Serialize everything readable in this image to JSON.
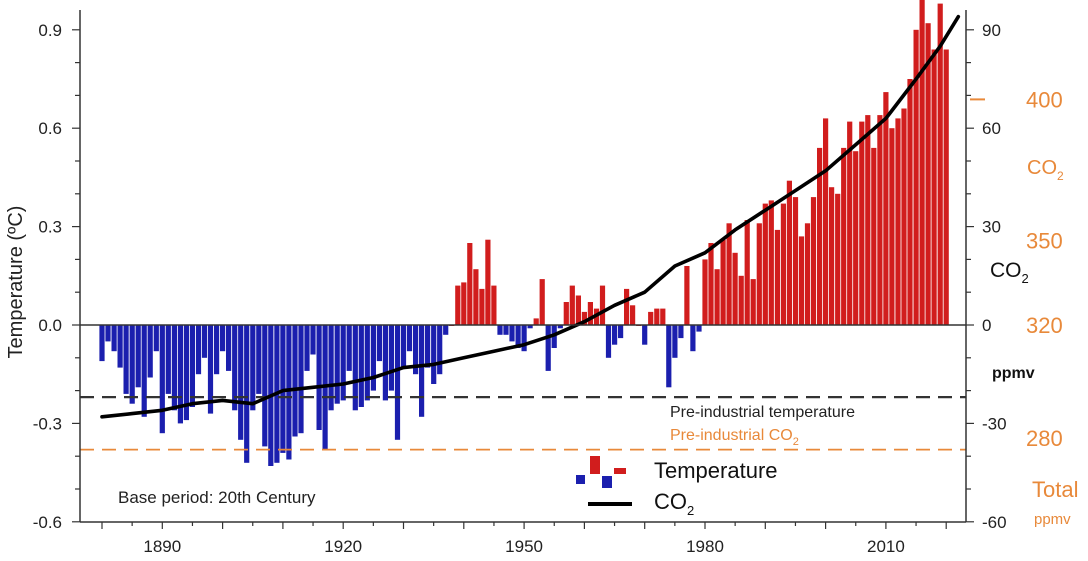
{
  "chart_data": {
    "type": "bar",
    "title": "",
    "xlabel": "",
    "ylabel": "Temperature (ºC)",
    "xlim": [
      1876,
      2024
    ],
    "ylim": [
      -0.6,
      0.9
    ],
    "x_ticks": [
      1890,
      1920,
      1950,
      1980,
      2010
    ],
    "y_ticks_left": [
      {
        "v": 0.9,
        "label": "0.9"
      },
      {
        "v": 0.6,
        "label": "0.6"
      },
      {
        "v": 0.3,
        "label": "0.3"
      },
      {
        "v": 0.0,
        "label": "0.0"
      },
      {
        "v": -0.3,
        "label": "-0.3"
      },
      {
        "v": -0.6,
        "label": "-0.6"
      }
    ],
    "y2_label": "CO2",
    "y2_unit": "ppmv",
    "y2_scale": "anomaly ppmv relative to 320 ppmv; -60 maps to -0.6 ºC, 90 maps to 0.9 ºC",
    "y2_ticks": [
      {
        "v": 90,
        "label": "90"
      },
      {
        "v": 60,
        "label": "60"
      },
      {
        "v": 30,
        "label": "30"
      },
      {
        "v": 0,
        "label": "0"
      },
      {
        "v": -30,
        "label": "-30"
      },
      {
        "v": -60,
        "label": "-60"
      }
    ],
    "y3_label": "CO",
    "y3_sub": "2",
    "y3_total_label": "Total",
    "y3_unit": "ppmv",
    "y3_ticks": [
      {
        "v": 400,
        "label": "400"
      },
      {
        "v": 350,
        "label": "350"
      },
      {
        "v": 320,
        "label": "320"
      },
      {
        "v": 280,
        "label": "280"
      }
    ],
    "reference_lines": [
      {
        "name": "pre-industrial-temperature",
        "y": -0.22,
        "label": "Pre-industrial temperature",
        "color": "#333333"
      },
      {
        "name": "pre-industrial-co2",
        "y": -0.38,
        "label_main": "Pre-industrial CO",
        "label_sub": "2",
        "color": "#e8893a"
      }
    ],
    "annotation": "Base period: 20th Century",
    "legend": [
      {
        "label": "Temperature",
        "type": "bars"
      },
      {
        "label_main": "CO",
        "label_sub": "2",
        "type": "line"
      }
    ],
    "legend_position": "bottom-center",
    "colors": {
      "positive": "#d11d1d",
      "negative": "#1b1fae",
      "co2": "#000000",
      "secondary_axis": "#e8893a",
      "grid": "#333333"
    },
    "series": [
      {
        "name": "Temperature",
        "x_start": 1880,
        "values": [
          -0.11,
          -0.05,
          -0.08,
          -0.13,
          -0.21,
          -0.24,
          -0.19,
          -0.28,
          -0.16,
          -0.08,
          -0.33,
          -0.21,
          -0.26,
          -0.3,
          -0.29,
          -0.25,
          -0.15,
          -0.1,
          -0.27,
          -0.15,
          -0.08,
          -0.14,
          -0.26,
          -0.35,
          -0.42,
          -0.26,
          -0.21,
          -0.37,
          -0.43,
          -0.42,
          -0.39,
          -0.41,
          -0.34,
          -0.33,
          -0.14,
          -0.09,
          -0.32,
          -0.38,
          -0.26,
          -0.24,
          -0.23,
          -0.14,
          -0.26,
          -0.25,
          -0.23,
          -0.2,
          -0.11,
          -0.23,
          -0.2,
          -0.35,
          -0.13,
          -0.08,
          -0.15,
          -0.28,
          -0.13,
          -0.18,
          -0.15,
          -0.03,
          -0.0,
          0.12,
          0.13,
          0.25,
          0.17,
          0.11,
          0.26,
          0.12,
          -0.03,
          -0.03,
          -0.05,
          -0.07,
          -0.08,
          -0.01,
          0.02,
          0.14,
          -0.14,
          -0.07,
          -0.01,
          0.07,
          0.12,
          0.09,
          0.04,
          0.07,
          0.05,
          0.12,
          -0.1,
          -0.06,
          -0.04,
          0.11,
          0.06,
          0.0,
          -0.06,
          0.04,
          0.05,
          0.05,
          -0.19,
          -0.1,
          -0.04,
          0.18,
          -0.08,
          -0.02,
          0.2,
          0.25,
          0.17,
          0.26,
          0.31,
          0.22,
          0.15,
          0.32,
          0.14,
          0.31,
          0.37,
          0.38,
          0.29,
          0.37,
          0.44,
          0.39,
          0.27,
          0.31,
          0.39,
          0.54,
          0.63,
          0.42,
          0.4,
          0.54,
          0.62,
          0.53,
          0.62,
          0.64,
          0.54,
          0.64,
          0.71,
          0.6,
          0.63,
          0.66,
          0.75,
          0.9,
          1.0,
          0.92,
          0.84,
          0.98,
          0.84
        ]
      },
      {
        "name": "CO2",
        "x": [
          1880,
          1885,
          1890,
          1895,
          1900,
          1905,
          1910,
          1915,
          1920,
          1925,
          1930,
          1935,
          1940,
          1945,
          1950,
          1955,
          1960,
          1965,
          1970,
          1975,
          1980,
          1985,
          1990,
          1995,
          2000,
          2005,
          2010,
          2015,
          2019,
          2022
        ],
        "values": [
          -0.28,
          -0.27,
          -0.26,
          -0.24,
          -0.23,
          -0.24,
          -0.2,
          -0.19,
          -0.18,
          -0.16,
          -0.13,
          -0.12,
          -0.1,
          -0.08,
          -0.06,
          -0.03,
          0.01,
          0.06,
          0.1,
          0.18,
          0.22,
          0.29,
          0.35,
          0.41,
          0.47,
          0.55,
          0.63,
          0.75,
          0.85,
          0.94
        ]
      }
    ]
  }
}
